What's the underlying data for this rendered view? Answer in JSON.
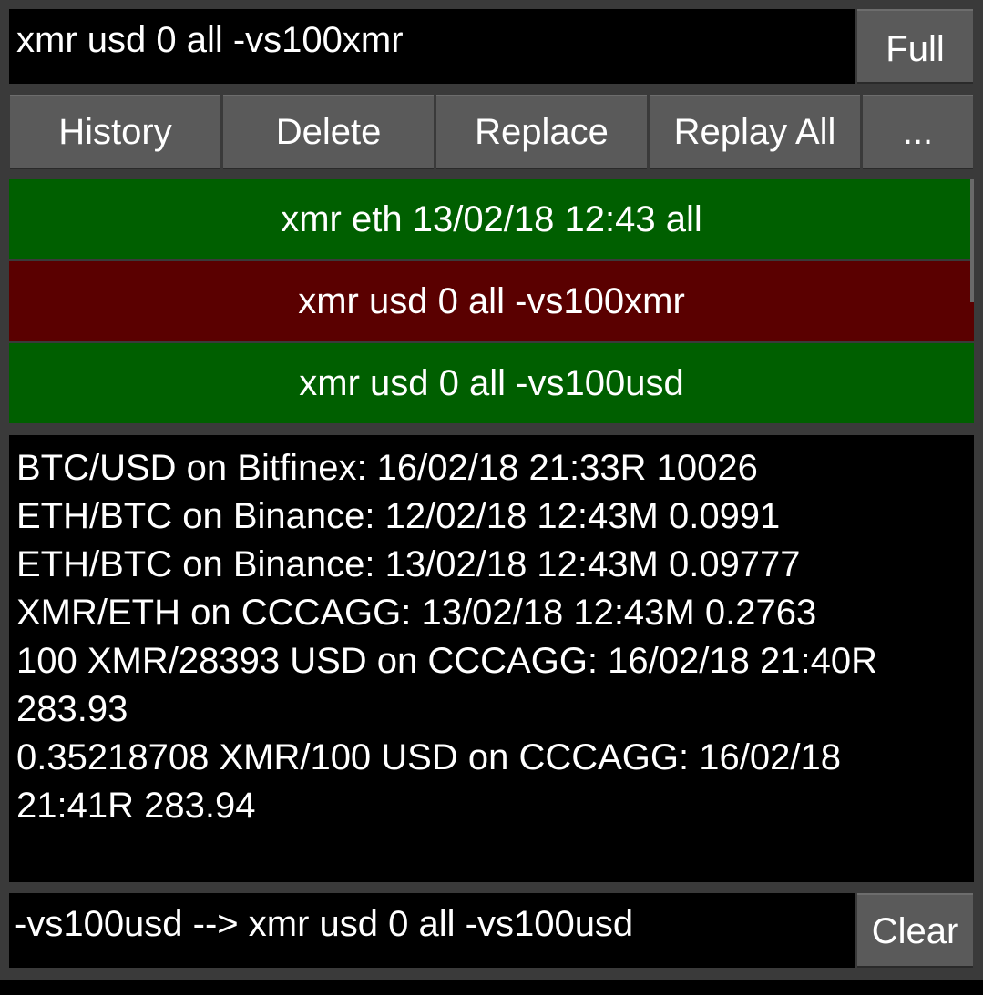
{
  "command": {
    "value": "xmr usd 0 all -vs100xmr",
    "full_label": "Full"
  },
  "toolbar": {
    "history_label": "History",
    "delete_label": "Delete",
    "replace_label": "Replace",
    "replay_all_label": "Replay All",
    "more_label": "..."
  },
  "history": [
    {
      "text": "xmr eth 13/02/18 12:43 all",
      "status": "success",
      "color": "#005f00"
    },
    {
      "text": "xmr usd 0 all -vs100xmr",
      "status": "selected",
      "color": "#5a0000"
    },
    {
      "text": "xmr usd 0 all -vs100usd",
      "status": "success",
      "color": "#005f00"
    }
  ],
  "output": {
    "lines": [
      "BTC/USD on Bitfinex: 16/02/18 21:33R 10026",
      "ETH/BTC on Binance: 12/02/18 12:43M 0.0991",
      "ETH/BTC on Binance: 13/02/18 12:43M 0.09777",
      "XMR/ETH on CCCAGG: 13/02/18 12:43M 0.2763",
      "100 XMR/28393 USD on CCCAGG: 16/02/18 21:40R 283.93",
      "0.35218708 XMR/100 USD on CCCAGG: 16/02/18 21:41R 283.94"
    ]
  },
  "log": {
    "text": "-vs100usd --> xmr usd 0 all -vs100usd",
    "clear_label": "Clear"
  }
}
